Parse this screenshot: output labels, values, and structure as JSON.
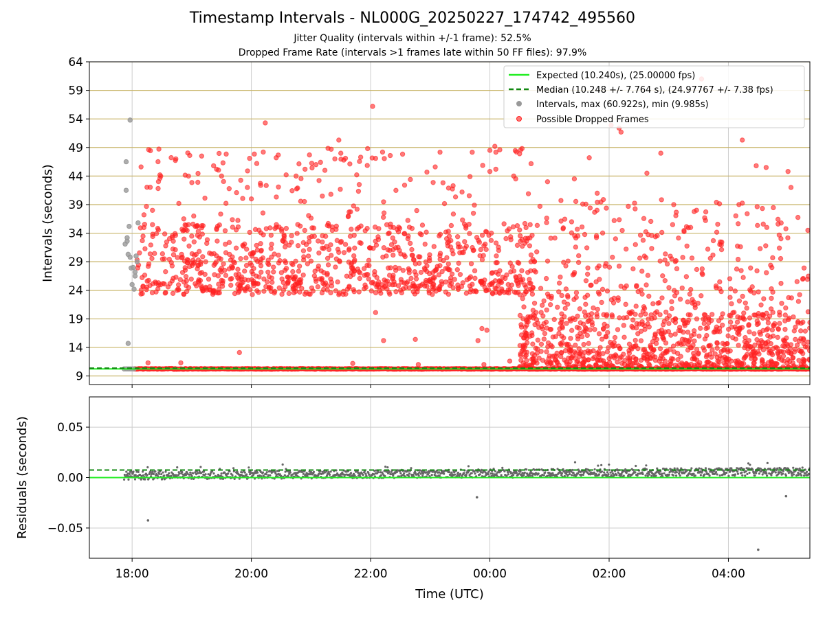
{
  "title": "Timestamp Intervals - NL000G_20250227_174742_495560",
  "subtitle_1": "Jitter Quality (intervals within +/-1 frame): 52.5%",
  "subtitle_2": "Dropped Frame Rate (intervals >1 frames late within 50 FF files): 97.9%",
  "colors": {
    "expected": "#22ee22",
    "median": "#118811",
    "dropped": "#ff2222",
    "intervals": "#999999",
    "residual_points": "#666666",
    "threshold_lines": "#c8b468",
    "grid": "#cccccc"
  },
  "chart_data": [
    {
      "type": "scatter",
      "name": "intervals",
      "xlabel": "",
      "ylabel": "Intervals (seconds)",
      "x_axis": {
        "type": "time",
        "range": [
          "17:17",
          "05:22"
        ]
      },
      "ylim": [
        7.5,
        64
      ],
      "yticks": [
        9,
        14,
        19,
        24,
        29,
        34,
        39,
        44,
        49,
        54,
        59,
        64
      ],
      "grid": true,
      "horizontal_lines": [
        9,
        14,
        19,
        24,
        29,
        34,
        39,
        44,
        49,
        54,
        59,
        64
      ],
      "legend_position": "top-right",
      "legend": [
        "Expected (10.240s), (25.00000 fps)",
        "Median (10.248 +/- 7.764 s), (24.97767 +/- 7.38 fps)",
        "Intervals, max (60.922s), min (9.985s)",
        "Possible Dropped Frames"
      ],
      "series": [
        {
          "name": "Expected (10.240s), (25.00000 fps)",
          "kind": "hline",
          "y": 10.24
        },
        {
          "name": "Median (10.248 +/- 7.764 s), (24.97767 +/- 7.38 fps)",
          "kind": "hline-dashed",
          "y": 10.248
        },
        {
          "name": "Intervals, max (60.922s), min (9.985s)",
          "kind": "scatter",
          "points": [
            [
              "17:53",
              32.1
            ],
            [
              "17:54",
              46.5
            ],
            [
              "17:54",
              41.5
            ],
            [
              "17:55",
              33.2
            ],
            [
              "17:56",
              30.3
            ],
            [
              "17:56",
              14.7
            ],
            [
              "17:57",
              35.2
            ],
            [
              "17:58",
              53.8
            ],
            [
              "17:58",
              29.8
            ],
            [
              "17:59",
              27.9
            ],
            [
              "18:00",
              25.0
            ],
            [
              "18:01",
              28.0
            ],
            [
              "18:02",
              24.2
            ],
            [
              "18:03",
              26.5
            ],
            [
              "18:04",
              30.0
            ],
            [
              "18:05",
              29.0
            ],
            [
              "18:06",
              35.8
            ],
            [
              "18:03",
              27.2
            ],
            [
              "17:55",
              32.6
            ],
            [
              "17:52",
              10.24
            ],
            [
              "17:54",
              10.24
            ],
            [
              "17:56",
              10.24
            ],
            [
              "17:58",
              10.24
            ],
            [
              "18:00",
              10.24
            ],
            [
              "18:02",
              10.24
            ]
          ]
        },
        {
          "name": "Possible Dropped Frames",
          "kind": "scatter",
          "baseline": 10.24,
          "points": [
            [
              "18:09",
              45.6
            ],
            [
              "18:16",
              11.3
            ],
            [
              "18:28",
              44.2
            ],
            [
              "18:28",
              43.6
            ],
            [
              "18:44",
              47.0
            ],
            [
              "18:47",
              39.2
            ],
            [
              "18:49",
              11.3
            ],
            [
              "18:52",
              36.5
            ],
            [
              "18:58",
              47.6
            ],
            [
              "19:02",
              37.0
            ],
            [
              "19:10",
              47.5
            ],
            [
              "19:14",
              29.0
            ],
            [
              "19:22",
              45.8
            ],
            [
              "19:25",
              45.2
            ],
            [
              "19:30",
              44.0
            ],
            [
              "19:40",
              28.2
            ],
            [
              "19:48",
              13.1
            ],
            [
              "19:56",
              42.0
            ],
            [
              "20:00",
              40.0
            ],
            [
              "20:12",
              48.2
            ],
            [
              "20:14",
              53.3
            ],
            [
              "20:25",
              47.2
            ],
            [
              "20:35",
              44.2
            ],
            [
              "20:45",
              44.0
            ],
            [
              "20:54",
              45.2
            ],
            [
              "20:58",
              32.5
            ],
            [
              "21:05",
              46.0
            ],
            [
              "21:14",
              45.0
            ],
            [
              "21:20",
              40.8
            ],
            [
              "21:24",
              47.0
            ],
            [
              "21:28",
              50.3
            ],
            [
              "21:30",
              48.0
            ],
            [
              "21:33",
              46.8
            ],
            [
              "21:42",
              11.2
            ],
            [
              "21:46",
              44.2
            ],
            [
              "21:50",
              47.3
            ],
            [
              "21:57",
              48.8
            ],
            [
              "22:02",
              56.2
            ],
            [
              "22:05",
              20.1
            ],
            [
              "22:05",
              47.1
            ],
            [
              "22:12",
              48.2
            ],
            [
              "22:13",
              15.2
            ],
            [
              "22:40",
              43.4
            ],
            [
              "22:45",
              15.4
            ],
            [
              "22:48",
              11.0
            ],
            [
              "23:05",
              45.6
            ],
            [
              "23:23",
              42.3
            ],
            [
              "23:32",
              41.2
            ],
            [
              "23:40",
              43.9
            ],
            [
              "23:48",
              15.2
            ],
            [
              "23:52",
              17.3
            ],
            [
              "23:54",
              11.0
            ],
            [
              "23:57",
              17.0
            ],
            [
              "24:00",
              48.5
            ],
            [
              "24:00",
              44.8
            ],
            [
              "24:05",
              49.2
            ],
            [
              "24:06",
              45.2
            ],
            [
              "24:10",
              48.6
            ],
            [
              "24:24",
              44.0
            ],
            [
              "24:26",
              43.5
            ],
            [
              "24:40",
              19.2
            ],
            [
              "24:58",
              43.0
            ],
            [
              "25:25",
              43.5
            ],
            [
              "25:40",
              47.2
            ],
            [
              "25:48",
              41.0
            ],
            [
              "26:02",
              52.9
            ],
            [
              "26:10",
              52.4
            ],
            [
              "26:12",
              51.7
            ],
            [
              "26:38",
              44.5
            ],
            [
              "26:52",
              48.0
            ],
            [
              "27:05",
              39.0
            ],
            [
              "27:22",
              35.0
            ],
            [
              "27:33",
              61.0
            ],
            [
              "27:48",
              39.4
            ],
            [
              "28:14",
              50.3
            ],
            [
              "28:28",
              45.8
            ],
            [
              "28:38",
              45.5
            ],
            [
              "28:50",
              35.6
            ],
            [
              "29:00",
              44.8
            ],
            [
              "29:20",
              34.5
            ],
            [
              "29:32",
              39.5
            ],
            [
              "29:47",
              46.0
            ],
            [
              "29:58",
              32.5
            ],
            [
              "30:08",
              46.8
            ],
            [
              "30:18",
              42.0
            ],
            [
              "30:22",
              31.8
            ],
            [
              "30:27",
              41.0
            ],
            [
              "30:33",
              39.0
            ],
            [
              "29:03",
              42.0
            ],
            [
              "28:33",
              15.2
            ],
            [
              "28:45",
              16.0
            ],
            [
              "27:55",
              13.5
            ],
            [
              "27:30",
              13.0
            ],
            [
              "27:15",
              14.6
            ],
            [
              "26:55",
              15.4
            ],
            [
              "26:40",
              12.8
            ],
            [
              "26:22",
              13.9
            ],
            [
              "26:04",
              14.2
            ],
            [
              "25:48",
              13.0
            ],
            [
              "25:30",
              12.4
            ],
            [
              "25:15",
              11.8
            ],
            [
              "25:00",
              12.5
            ],
            [
              "24:45",
              12.6
            ],
            [
              "24:35",
              13.2
            ],
            [
              "24:20",
              11.6
            ]
          ]
        }
      ]
    },
    {
      "type": "scatter",
      "name": "residuals",
      "xlabel": "Time (UTC)",
      "ylabel": "Residuals (seconds)",
      "xticks": [
        "18:00",
        "20:00",
        "22:00",
        "00:00",
        "02:00",
        "04:00"
      ],
      "ylim": [
        -0.08,
        0.08
      ],
      "yticks": [
        {
          "value": 0.05,
          "label": "0.05"
        },
        {
          "value": 0.0,
          "label": "0.00"
        },
        {
          "value": -0.05,
          "label": "−0.05"
        }
      ],
      "grid": true,
      "series": [
        {
          "name": "expected",
          "kind": "hline",
          "y": 0.0
        },
        {
          "name": "median",
          "kind": "hline-dashed",
          "y": 0.0075
        },
        {
          "name": "residuals",
          "kind": "scatter",
          "trend": {
            "start": 0.002,
            "end": 0.006
          },
          "outliers": [
            [
              "18:16",
              -0.0425
            ],
            [
              "23:47",
              -0.0195
            ],
            [
              "28:30",
              -0.0715
            ],
            [
              "28:58",
              -0.0185
            ]
          ]
        }
      ]
    }
  ]
}
